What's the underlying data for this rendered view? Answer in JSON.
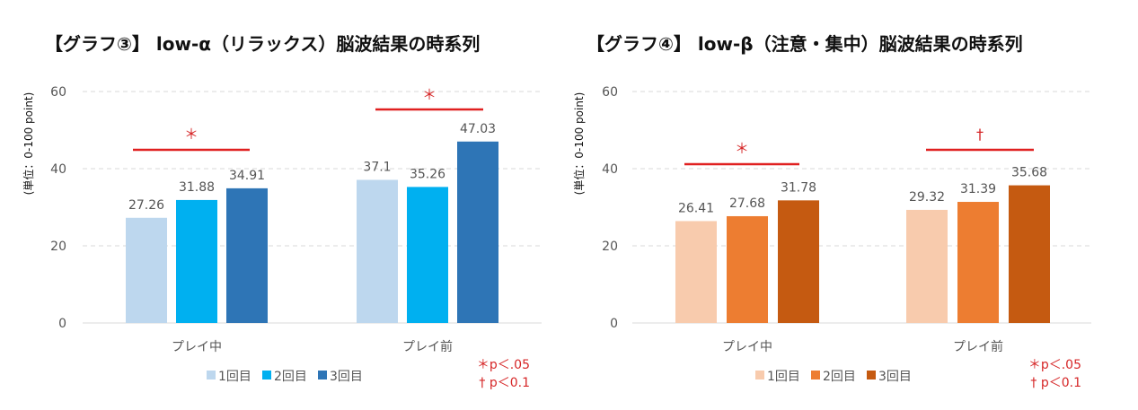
{
  "chart_data": [
    {
      "type": "bar",
      "title": "【グラフ③】 low-α（リラックス）脳波結果の時系列",
      "ylabel": "(単位：0-100 point)",
      "ylim": [
        0,
        60
      ],
      "yticks": [
        0,
        20,
        40,
        60
      ],
      "grid": true,
      "legend_position": "bottom",
      "categories": [
        "プレイ中",
        "プレイ前"
      ],
      "series": [
        {
          "name": "1回目",
          "color": "#bdd7ee",
          "values": [
            27.26,
            37.1
          ]
        },
        {
          "name": "2回目",
          "color": "#00b0f0",
          "values": [
            31.88,
            35.26
          ]
        },
        {
          "name": "3回目",
          "color": "#2e75b6",
          "values": [
            34.91,
            47.03
          ]
        }
      ],
      "significance": [
        {
          "category": "プレイ中",
          "mark": "＊"
        },
        {
          "category": "プレイ前",
          "mark": "＊"
        }
      ],
      "notes": [
        "＊p＜.05",
        "† p＜0.1"
      ]
    },
    {
      "type": "bar",
      "title": "【グラフ④】 low-β（注意・集中）脳波結果の時系列",
      "ylabel": "(単位：0-100 point)",
      "ylim": [
        0,
        60
      ],
      "yticks": [
        0,
        20,
        40,
        60
      ],
      "grid": true,
      "legend_position": "bottom",
      "categories": [
        "プレイ中",
        "プレイ前"
      ],
      "series": [
        {
          "name": "1回目",
          "color": "#f8cbad",
          "values": [
            26.41,
            29.32
          ]
        },
        {
          "name": "2回目",
          "color": "#ed7d31",
          "values": [
            27.68,
            31.39
          ]
        },
        {
          "name": "3回目",
          "color": "#c55a11",
          "values": [
            31.78,
            35.68
          ]
        }
      ],
      "significance": [
        {
          "category": "プレイ中",
          "mark": "＊"
        },
        {
          "category": "プレイ前",
          "mark": "†"
        }
      ],
      "notes": [
        "＊p＜.05",
        "† p＜0.1"
      ]
    }
  ]
}
